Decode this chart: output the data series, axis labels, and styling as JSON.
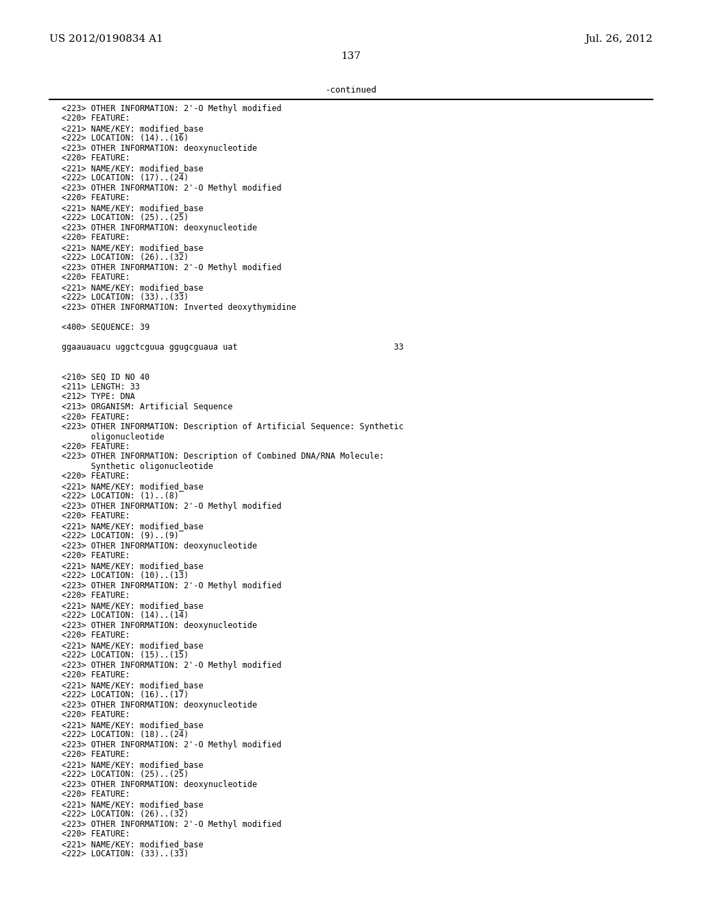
{
  "header_left": "US 2012/0190834 A1",
  "header_right": "Jul. 26, 2012",
  "page_number": "137",
  "continued_label": "-continued",
  "background_color": "#ffffff",
  "text_color": "#000000",
  "font_size": 8.5,
  "header_font_size": 11,
  "page_num_font_size": 11,
  "lines": [
    "<223> OTHER INFORMATION: 2'-O Methyl modified",
    "<220> FEATURE:",
    "<221> NAME/KEY: modified_base",
    "<222> LOCATION: (14)..(16)",
    "<223> OTHER INFORMATION: deoxynucleotide",
    "<220> FEATURE:",
    "<221> NAME/KEY: modified_base",
    "<222> LOCATION: (17)..(24)",
    "<223> OTHER INFORMATION: 2'-O Methyl modified",
    "<220> FEATURE:",
    "<221> NAME/KEY: modified_base",
    "<222> LOCATION: (25)..(25)",
    "<223> OTHER INFORMATION: deoxynucleotide",
    "<220> FEATURE:",
    "<221> NAME/KEY: modified_base",
    "<222> LOCATION: (26)..(32)",
    "<223> OTHER INFORMATION: 2'-O Methyl modified",
    "<220> FEATURE:",
    "<221> NAME/KEY: modified_base",
    "<222> LOCATION: (33)..(33)",
    "<223> OTHER INFORMATION: Inverted deoxythymidine",
    "",
    "<400> SEQUENCE: 39",
    "",
    "ggaauauacu uggctcguua ggugcguaua uat                                33",
    "",
    "",
    "<210> SEQ ID NO 40",
    "<211> LENGTH: 33",
    "<212> TYPE: DNA",
    "<213> ORGANISM: Artificial Sequence",
    "<220> FEATURE:",
    "<223> OTHER INFORMATION: Description of Artificial Sequence: Synthetic",
    "      oligonucleotide",
    "<220> FEATURE:",
    "<223> OTHER INFORMATION: Description of Combined DNA/RNA Molecule:",
    "      Synthetic oligonucleotide",
    "<220> FEATURE:",
    "<221> NAME/KEY: modified_base",
    "<222> LOCATION: (1)..(8)",
    "<223> OTHER INFORMATION: 2'-O Methyl modified",
    "<220> FEATURE:",
    "<221> NAME/KEY: modified_base",
    "<222> LOCATION: (9)..(9)",
    "<223> OTHER INFORMATION: deoxynucleotide",
    "<220> FEATURE:",
    "<221> NAME/KEY: modified_base",
    "<222> LOCATION: (10)..(13)",
    "<223> OTHER INFORMATION: 2'-O Methyl modified",
    "<220> FEATURE:",
    "<221> NAME/KEY: modified_base",
    "<222> LOCATION: (14)..(14)",
    "<223> OTHER INFORMATION: deoxynucleotide",
    "<220> FEATURE:",
    "<221> NAME/KEY: modified_base",
    "<222> LOCATION: (15)..(15)",
    "<223> OTHER INFORMATION: 2'-O Methyl modified",
    "<220> FEATURE:",
    "<221> NAME/KEY: modified_base",
    "<222> LOCATION: (16)..(17)",
    "<223> OTHER INFORMATION: deoxynucleotide",
    "<220> FEATURE:",
    "<221> NAME/KEY: modified_base",
    "<222> LOCATION: (18)..(24)",
    "<223> OTHER INFORMATION: 2'-O Methyl modified",
    "<220> FEATURE:",
    "<221> NAME/KEY: modified_base",
    "<222> LOCATION: (25)..(25)",
    "<223> OTHER INFORMATION: deoxynucleotide",
    "<220> FEATURE:",
    "<221> NAME/KEY: modified_base",
    "<222> LOCATION: (26)..(32)",
    "<223> OTHER INFORMATION: 2'-O Methyl modified",
    "<220> FEATURE:",
    "<221> NAME/KEY: modified_base",
    "<222> LOCATION: (33)..(33)"
  ]
}
